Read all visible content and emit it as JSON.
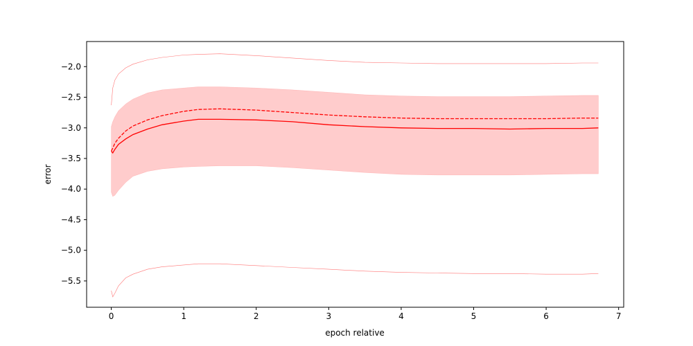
{
  "chart_data": {
    "type": "line",
    "title": "",
    "xlabel": "epoch relative",
    "ylabel": "error",
    "xlim": [
      -0.34,
      7.07
    ],
    "ylim": [
      -5.93,
      -1.59
    ],
    "xticks": [
      0,
      1,
      2,
      3,
      4,
      5,
      6,
      7
    ],
    "xtick_labels": [
      "0",
      "1",
      "2",
      "3",
      "4",
      "5",
      "6",
      "7"
    ],
    "yticks": [
      -2.0,
      -2.5,
      -3.0,
      -3.5,
      -4.0,
      -4.5,
      -5.0,
      -5.5
    ],
    "ytick_labels": [
      "−2.0",
      "−2.5",
      "−3.0",
      "−3.5",
      "−4.0",
      "−4.5",
      "−5.0",
      "−5.5"
    ],
    "grid": false,
    "legend": null,
    "colors": {
      "line": "#ff0000",
      "band": "#ffcccc",
      "band_edge": "#ff8080"
    },
    "x": [
      0,
      0.02,
      0.05,
      0.1,
      0.2,
      0.3,
      0.5,
      0.7,
      1.0,
      1.2,
      1.5,
      2.0,
      2.5,
      3.0,
      3.5,
      4.0,
      4.5,
      5.0,
      5.5,
      6.0,
      6.5,
      6.72
    ],
    "series": [
      {
        "role": "mean",
        "style": "solid",
        "values": [
          -3.38,
          -3.41,
          -3.35,
          -3.27,
          -3.18,
          -3.11,
          -3.02,
          -2.95,
          -2.89,
          -2.86,
          -2.86,
          -2.87,
          -2.9,
          -2.95,
          -2.98,
          -3.0,
          -3.01,
          -3.01,
          -3.02,
          -3.01,
          -3.01,
          -3.0
        ]
      },
      {
        "role": "dashed",
        "style": "dashed",
        "values": [
          -3.38,
          -3.33,
          -3.25,
          -3.17,
          -3.05,
          -2.97,
          -2.87,
          -2.8,
          -2.73,
          -2.7,
          -2.69,
          -2.71,
          -2.75,
          -2.79,
          -2.82,
          -2.84,
          -2.85,
          -2.85,
          -2.85,
          -2.85,
          -2.84,
          -2.84
        ]
      },
      {
        "role": "band-upper",
        "style": "fill",
        "values": [
          -2.98,
          -2.9,
          -2.82,
          -2.72,
          -2.61,
          -2.53,
          -2.43,
          -2.38,
          -2.35,
          -2.33,
          -2.33,
          -2.35,
          -2.38,
          -2.42,
          -2.46,
          -2.48,
          -2.49,
          -2.49,
          -2.49,
          -2.48,
          -2.47,
          -2.47
        ]
      },
      {
        "role": "band-lower",
        "style": "fill",
        "values": [
          -4.05,
          -4.12,
          -4.1,
          -4.02,
          -3.89,
          -3.79,
          -3.71,
          -3.67,
          -3.64,
          -3.63,
          -3.62,
          -3.62,
          -3.65,
          -3.69,
          -3.73,
          -3.76,
          -3.77,
          -3.77,
          -3.77,
          -3.76,
          -3.75,
          -3.75
        ]
      },
      {
        "role": "max",
        "style": "thin",
        "values": [
          -2.63,
          -2.35,
          -2.22,
          -2.12,
          -2.02,
          -1.96,
          -1.89,
          -1.85,
          -1.81,
          -1.8,
          -1.79,
          -1.82,
          -1.86,
          -1.9,
          -1.93,
          -1.94,
          -1.95,
          -1.95,
          -1.95,
          -1.95,
          -1.94,
          -1.94
        ]
      },
      {
        "role": "min",
        "style": "thin",
        "values": [
          -5.66,
          -5.76,
          -5.7,
          -5.58,
          -5.45,
          -5.39,
          -5.31,
          -5.27,
          -5.24,
          -5.22,
          -5.22,
          -5.25,
          -5.28,
          -5.31,
          -5.34,
          -5.36,
          -5.37,
          -5.38,
          -5.38,
          -5.39,
          -5.39,
          -5.38
        ]
      }
    ]
  }
}
